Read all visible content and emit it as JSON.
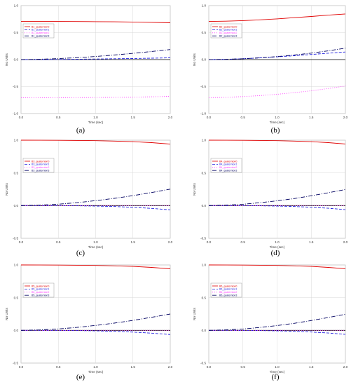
{
  "panel_labels": [
    "(a)",
    "(b)",
    "(c)",
    "(d)",
    "(e)",
    "(f)"
  ],
  "colors": {
    "series0": "#e00000",
    "series1": "#2020e0",
    "series2": "#ff40ff",
    "series3": "#000060"
  },
  "chart_data": [
    {
      "type": "line",
      "title": "",
      "xlabel": "Time (sec)",
      "ylabel": "No Units",
      "xlim": [
        0,
        2
      ],
      "ylim": [
        -1,
        1
      ],
      "xticks": [
        "0.0",
        "0.5",
        "1.0",
        "1.5",
        "2.0"
      ],
      "yticks": [
        "-1.0",
        "-0.5",
        "0.0",
        "0.5",
        "1.0"
      ],
      "grid": true,
      "legend_position": "top-left",
      "x": [
        0,
        0.25,
        0.5,
        0.75,
        1.0,
        1.25,
        1.5,
        1.75,
        2.0
      ],
      "series": [
        {
          "name": "B1_quaternion0",
          "style": "solid",
          "values": [
            0.707,
            0.707,
            0.706,
            0.705,
            0.703,
            0.7,
            0.696,
            0.69,
            0.682
          ]
        },
        {
          "name": "B1_quaternion1",
          "style": "dashed",
          "values": [
            0,
            0.001,
            0.003,
            0.006,
            0.01,
            0.015,
            0.02,
            0.026,
            0.032
          ]
        },
        {
          "name": "B1_quaternion2",
          "style": "dotted",
          "values": [
            -0.707,
            -0.707,
            -0.706,
            -0.705,
            -0.703,
            -0.7,
            -0.696,
            -0.69,
            -0.682
          ]
        },
        {
          "name": "B1_quaternion3",
          "style": "dashdot",
          "values": [
            0,
            0.006,
            0.018,
            0.035,
            0.057,
            0.084,
            0.115,
            0.15,
            0.186
          ]
        }
      ]
    },
    {
      "type": "line",
      "title": "",
      "xlabel": "Time (sec)",
      "ylabel": "No Units",
      "xlim": [
        0,
        2
      ],
      "ylim": [
        -1,
        1
      ],
      "xticks": [
        "0.0",
        "0.5",
        "1.0",
        "1.5",
        "2.0"
      ],
      "yticks": [
        "-1.0",
        "-0.5",
        "0.0",
        "0.5",
        "1.0"
      ],
      "grid": true,
      "legend_position": "top-left",
      "x": [
        0,
        0.25,
        0.5,
        0.75,
        1.0,
        1.25,
        1.5,
        1.75,
        2.0
      ],
      "series": [
        {
          "name": "B2_quaternion0",
          "style": "solid",
          "values": [
            0.707,
            0.712,
            0.722,
            0.737,
            0.755,
            0.776,
            0.799,
            0.823,
            0.846
          ]
        },
        {
          "name": "B2_quaternion1",
          "style": "dashed",
          "values": [
            0,
            0.004,
            0.015,
            0.031,
            0.05,
            0.072,
            0.095,
            0.118,
            0.14
          ]
        },
        {
          "name": "B2_quaternion2",
          "style": "dotted",
          "values": [
            -0.707,
            -0.7,
            -0.686,
            -0.667,
            -0.643,
            -0.613,
            -0.578,
            -0.537,
            -0.49
          ]
        },
        {
          "name": "B2_quaternion3",
          "style": "dashdot",
          "values": [
            0,
            0.005,
            0.016,
            0.033,
            0.056,
            0.085,
            0.12,
            0.162,
            0.212
          ]
        }
      ]
    },
    {
      "type": "line",
      "title": "",
      "xlabel": "Time (sec)",
      "ylabel": "No Units",
      "xlim": [
        0,
        2
      ],
      "ylim": [
        -0.5,
        1
      ],
      "xticks": [
        "0.0",
        "0.5",
        "1.0",
        "1.5",
        "2.0"
      ],
      "yticks": [
        "-0.5",
        "0.0",
        "0.5",
        "1.0"
      ],
      "grid": true,
      "legend_position": "top-left",
      "x": [
        0,
        0.25,
        0.5,
        0.75,
        1.0,
        1.25,
        1.5,
        1.75,
        2.0
      ],
      "series": [
        {
          "name": "B3_quaternion0",
          "style": "solid",
          "values": [
            1.0,
            0.999,
            0.998,
            0.996,
            0.992,
            0.986,
            0.977,
            0.962,
            0.94
          ]
        },
        {
          "name": "B3_quaternion1",
          "style": "dashed",
          "values": [
            0,
            0.0,
            -0.001,
            -0.003,
            -0.007,
            -0.014,
            -0.026,
            -0.042,
            -0.065
          ]
        },
        {
          "name": "B3_quaternion2",
          "style": "dotted",
          "values": [
            0,
            0,
            0,
            0,
            0,
            0,
            0,
            0,
            0
          ]
        },
        {
          "name": "B3_quaternion3",
          "style": "dashdot",
          "values": [
            0,
            0.007,
            0.022,
            0.045,
            0.075,
            0.111,
            0.153,
            0.2,
            0.252
          ]
        }
      ]
    },
    {
      "type": "line",
      "title": "",
      "xlabel": "Time (sec)",
      "ylabel": "No Units",
      "xlim": [
        0,
        2
      ],
      "ylim": [
        -0.5,
        1
      ],
      "xticks": [
        "0.0",
        "0.5",
        "1.0",
        "1.5",
        "2.0"
      ],
      "yticks": [
        "-0.5",
        "0.0",
        "0.5",
        "1.0"
      ],
      "grid": true,
      "legend_position": "top-left",
      "x": [
        0,
        0.25,
        0.5,
        0.75,
        1.0,
        1.25,
        1.5,
        1.75,
        2.0
      ],
      "series": [
        {
          "name": "B4_quaternion0",
          "style": "solid",
          "values": [
            1.0,
            0.999,
            0.998,
            0.996,
            0.992,
            0.986,
            0.977,
            0.963,
            0.942
          ]
        },
        {
          "name": "B4_quaternion1",
          "style": "dashed",
          "values": [
            0,
            0.0,
            -0.001,
            -0.003,
            -0.007,
            -0.014,
            -0.025,
            -0.04,
            -0.062
          ]
        },
        {
          "name": "B4_quaternion2",
          "style": "dotted",
          "values": [
            0,
            0,
            0,
            0,
            0,
            0,
            0,
            0,
            0
          ]
        },
        {
          "name": "B4_quaternion3",
          "style": "dashdot",
          "values": [
            0,
            0.007,
            0.021,
            0.044,
            0.073,
            0.108,
            0.15,
            0.196,
            0.246
          ]
        }
      ]
    },
    {
      "type": "line",
      "title": "",
      "xlabel": "Time (sec)",
      "ylabel": "No Units",
      "xlim": [
        0,
        2
      ],
      "ylim": [
        -0.5,
        1
      ],
      "xticks": [
        "0.0",
        "0.5",
        "1.0",
        "1.5",
        "2.0"
      ],
      "yticks": [
        "-0.5",
        "0.0",
        "0.5",
        "1.0"
      ],
      "grid": true,
      "legend_position": "top-left",
      "x": [
        0,
        0.25,
        0.5,
        0.75,
        1.0,
        1.25,
        1.5,
        1.75,
        2.0
      ],
      "series": [
        {
          "name": "B5_quaternion0",
          "style": "solid",
          "values": [
            1.0,
            0.999,
            0.998,
            0.996,
            0.992,
            0.986,
            0.977,
            0.962,
            0.94
          ]
        },
        {
          "name": "B5_quaternion1",
          "style": "dashed",
          "values": [
            0,
            0.0,
            -0.001,
            -0.003,
            -0.007,
            -0.014,
            -0.026,
            -0.042,
            -0.064
          ]
        },
        {
          "name": "B5_quaternion2",
          "style": "dotted",
          "values": [
            0,
            0,
            0,
            0,
            0,
            0,
            0,
            0,
            0
          ]
        },
        {
          "name": "B5_quaternion3",
          "style": "dashdot",
          "values": [
            0,
            0.007,
            0.022,
            0.045,
            0.075,
            0.111,
            0.153,
            0.2,
            0.25
          ]
        }
      ]
    },
    {
      "type": "line",
      "title": "",
      "xlabel": "Time (sec)",
      "ylabel": "No Units",
      "xlim": [
        0,
        2
      ],
      "ylim": [
        -0.5,
        1
      ],
      "xticks": [
        "0.0",
        "0.5",
        "1.0",
        "1.5",
        "2.0"
      ],
      "yticks": [
        "-0.5",
        "0.0",
        "0.5",
        "1.0"
      ],
      "grid": true,
      "legend_position": "top-left",
      "x": [
        0,
        0.25,
        0.5,
        0.75,
        1.0,
        1.25,
        1.5,
        1.75,
        2.0
      ],
      "series": [
        {
          "name": "B6_quaternion0",
          "style": "solid",
          "values": [
            1.0,
            0.999,
            0.998,
            0.996,
            0.992,
            0.986,
            0.977,
            0.963,
            0.942
          ]
        },
        {
          "name": "B6_quaternion1",
          "style": "dashed",
          "values": [
            0,
            0.0,
            -0.001,
            -0.003,
            -0.007,
            -0.014,
            -0.025,
            -0.04,
            -0.062
          ]
        },
        {
          "name": "B6_quaternion2",
          "style": "dotted",
          "values": [
            0,
            0,
            0,
            0,
            0,
            0,
            0,
            0,
            0
          ]
        },
        {
          "name": "B6_quaternion3",
          "style": "dashdot",
          "values": [
            0,
            0.007,
            0.021,
            0.044,
            0.073,
            0.108,
            0.15,
            0.196,
            0.246
          ]
        }
      ]
    }
  ]
}
